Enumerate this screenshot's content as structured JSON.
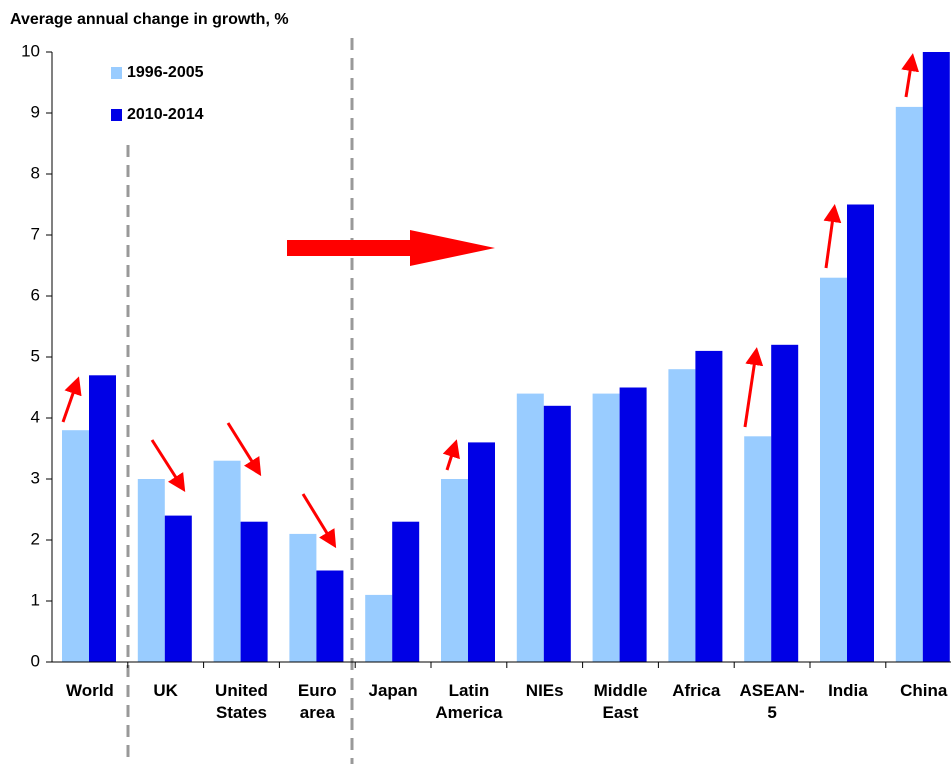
{
  "chart_data": {
    "type": "bar",
    "title": "Average annual change in growth, %",
    "categories": [
      "World",
      "UK",
      "United States",
      "Euro area",
      "Japan",
      "Latin America",
      "NIEs",
      "Middle East",
      "Africa",
      "ASEAN-5",
      "India",
      "China"
    ],
    "series": [
      {
        "name": "1996-2005",
        "color": "#99ccff",
        "values": [
          3.8,
          3.0,
          3.3,
          2.1,
          1.1,
          3.0,
          4.4,
          4.4,
          4.8,
          3.7,
          6.3,
          9.1
        ]
      },
      {
        "name": "2010-2014",
        "color": "#0000e6",
        "values": [
          4.7,
          2.4,
          2.3,
          1.5,
          2.3,
          3.6,
          4.2,
          4.5,
          5.1,
          5.2,
          7.5,
          10.0
        ]
      }
    ],
    "ylim": [
      0,
      10
    ],
    "yticks": [
      0,
      1,
      2,
      3,
      4,
      5,
      6,
      7,
      8,
      9,
      10
    ],
    "grid": false,
    "legend": "top-left"
  }
}
